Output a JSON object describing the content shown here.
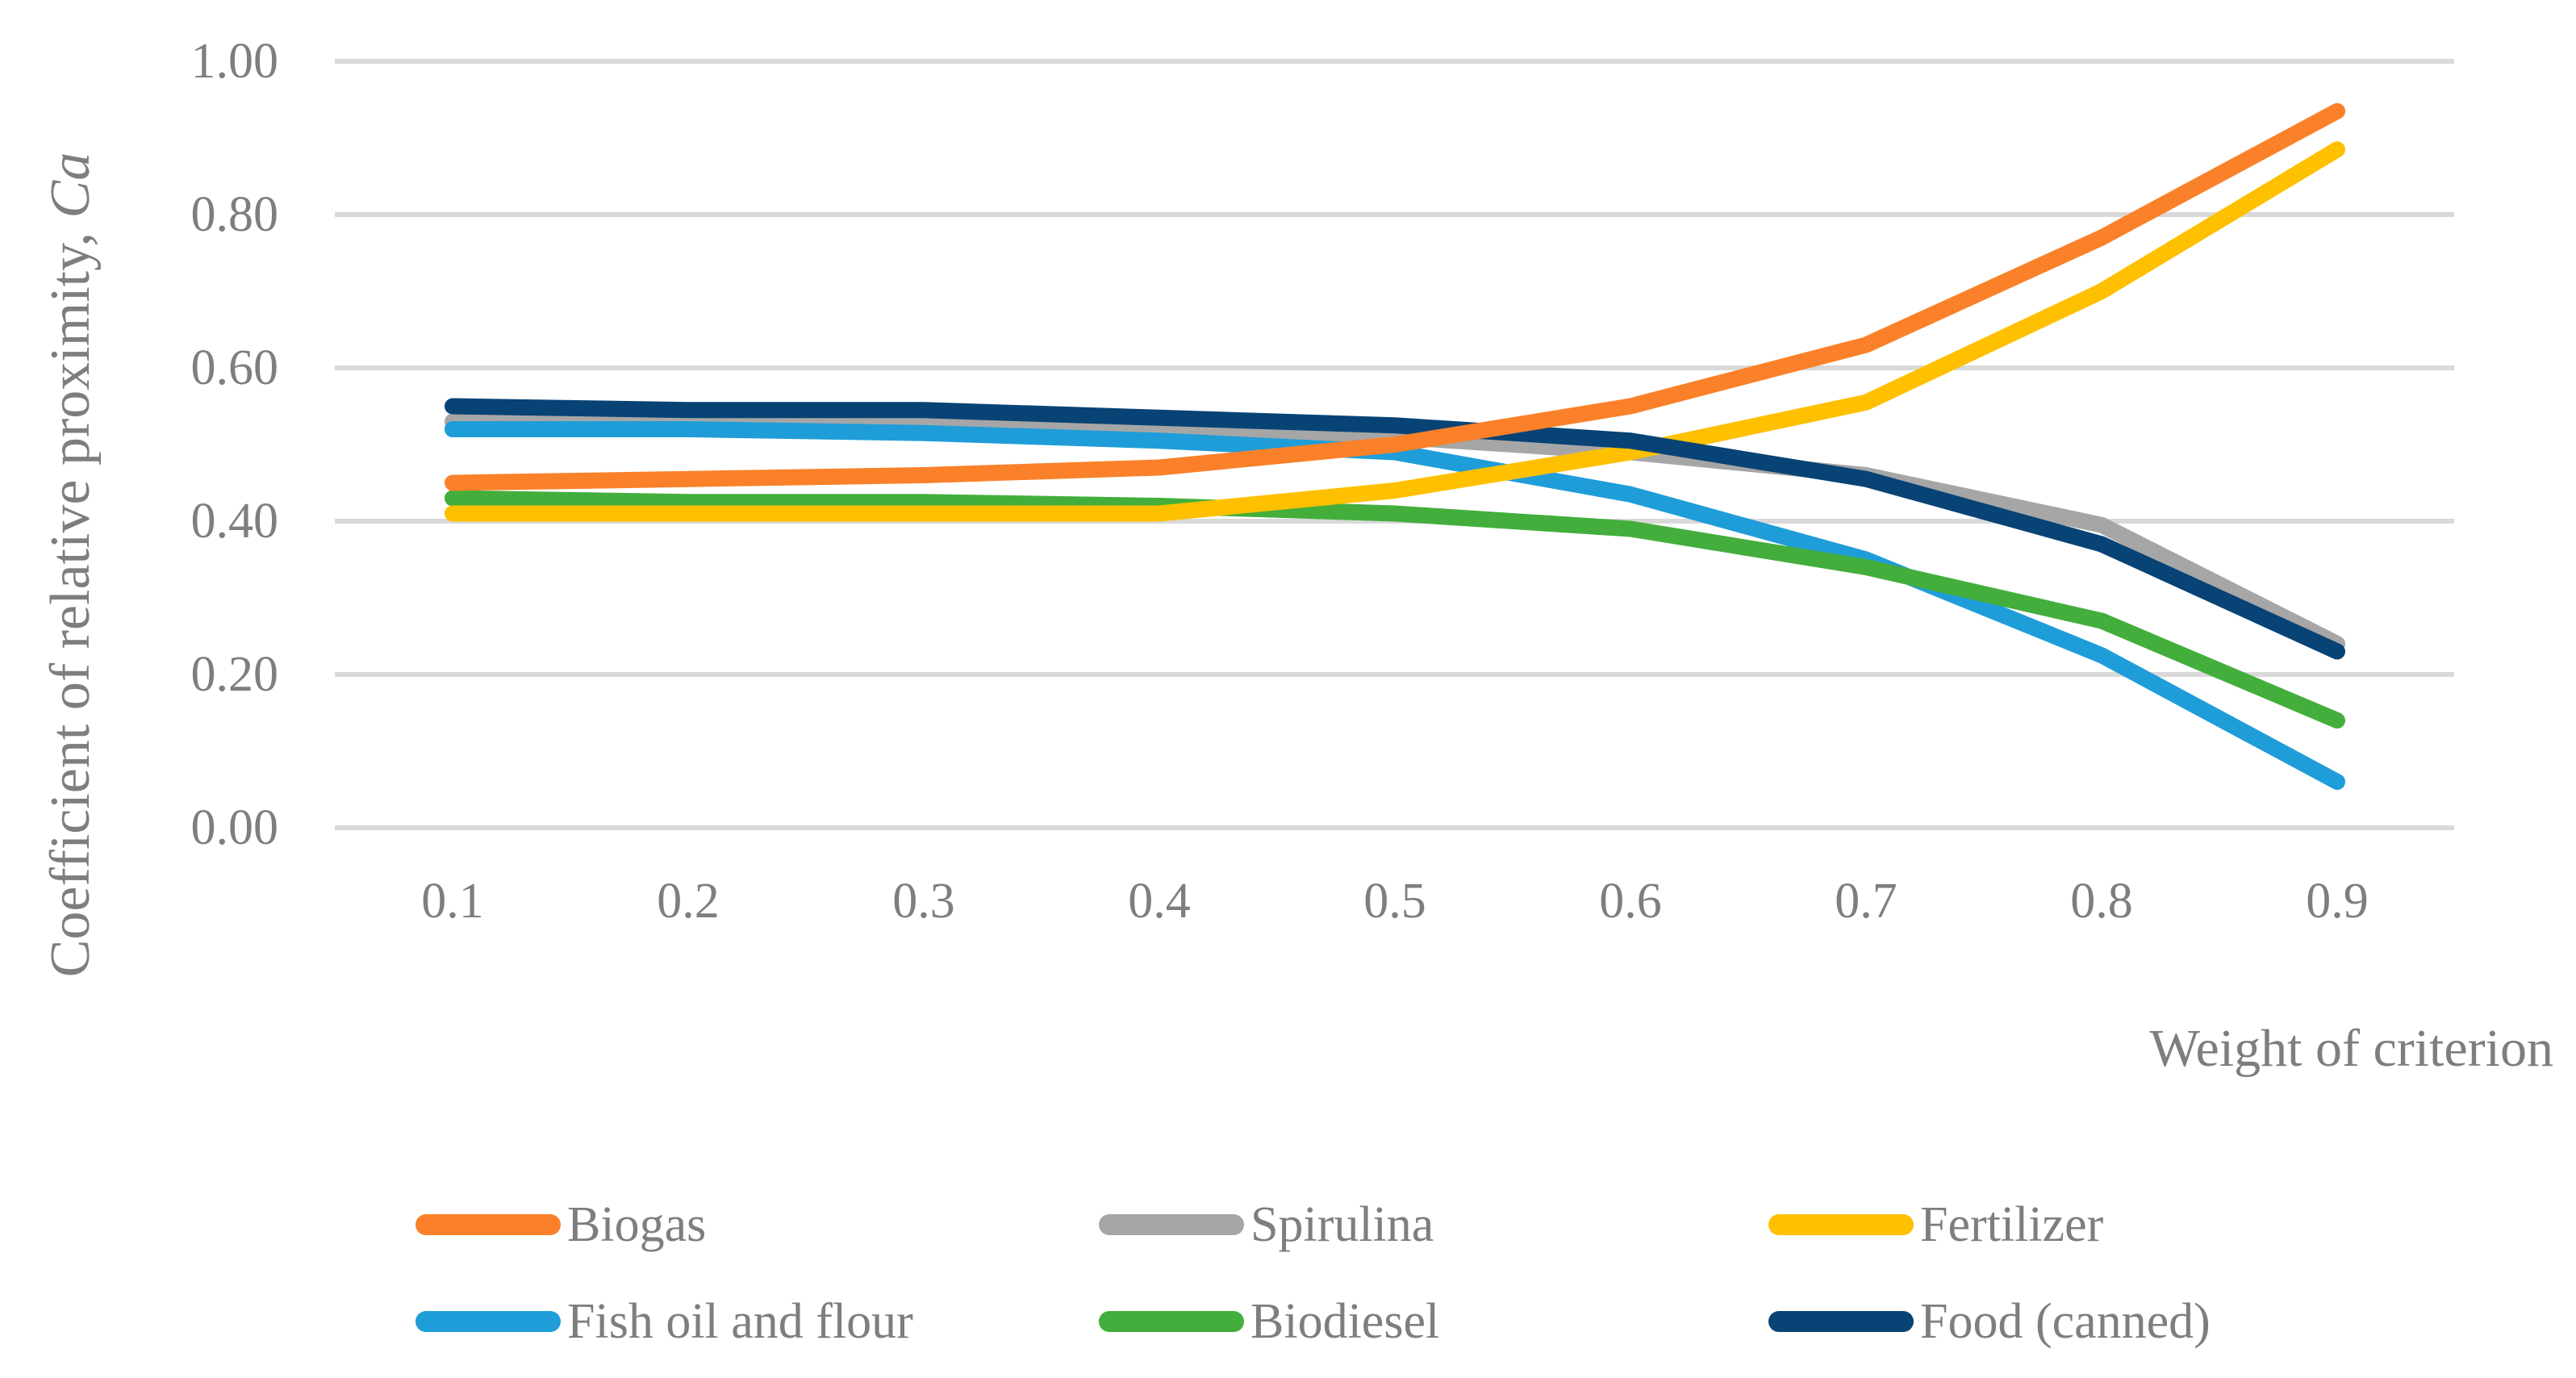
{
  "chart_data": {
    "type": "line",
    "title": "",
    "xlabel": "Weight of criterion",
    "ylabel": "Coefficient of relative proximity, Ca",
    "ylabel_main": "Coefficient of relative proximity, ",
    "ylabel_symbol": "Ca",
    "x": [
      0.1,
      0.2,
      0.3,
      0.4,
      0.5,
      0.6,
      0.7,
      0.8,
      0.9
    ],
    "x_tick_labels": [
      "0.1",
      "0.2",
      "0.3",
      "0.4",
      "0.5",
      "0.6",
      "0.7",
      "0.8",
      "0.9"
    ],
    "y_ticks": [
      1.0,
      0.8,
      0.6,
      0.4,
      0.2,
      0.0
    ],
    "y_tick_labels": [
      "1.00",
      "0.80",
      "0.60",
      "0.40",
      "0.20",
      "0.00"
    ],
    "ylim": [
      0.0,
      1.0
    ],
    "grid": "horizontal-only",
    "gridline_color": "#D9D9D9",
    "axis_text_color": "#7E7E7E",
    "legend_position": "bottom",
    "series": [
      {
        "name": "Biogas",
        "color": "#FA8129",
        "values": [
          0.45,
          0.455,
          0.46,
          0.47,
          0.5,
          0.55,
          0.63,
          0.77,
          0.935
        ]
      },
      {
        "name": "Spirulina",
        "color": "#A6A6A6",
        "values": [
          0.53,
          0.53,
          0.53,
          0.52,
          0.51,
          0.49,
          0.46,
          0.395,
          0.24
        ]
      },
      {
        "name": "Fertilizer",
        "color": "#FFC000",
        "values": [
          0.41,
          0.41,
          0.41,
          0.41,
          0.44,
          0.49,
          0.555,
          0.7,
          0.885
        ]
      },
      {
        "name": "Fish oil and flour",
        "color": "#1F9DD9",
        "values": [
          0.52,
          0.52,
          0.515,
          0.505,
          0.49,
          0.435,
          0.35,
          0.225,
          0.06
        ]
      },
      {
        "name": "Biodiesel",
        "color": "#43AE3C",
        "values": [
          0.43,
          0.425,
          0.425,
          0.42,
          0.41,
          0.39,
          0.34,
          0.27,
          0.14
        ]
      },
      {
        "name": "Food (canned)",
        "color": "#084375",
        "values": [
          0.55,
          0.545,
          0.545,
          0.535,
          0.525,
          0.505,
          0.455,
          0.37,
          0.23
        ]
      }
    ],
    "draw_order": [
      "Spirulina",
      "Fish oil and flour",
      "Biodiesel",
      "Fertilizer",
      "Food (canned)",
      "Biogas"
    ],
    "legend_rows": [
      [
        "Biogas",
        "Spirulina",
        "Fertilizer"
      ],
      [
        "Fish oil and flour",
        "Biodiesel",
        "Food (canned)"
      ]
    ]
  }
}
